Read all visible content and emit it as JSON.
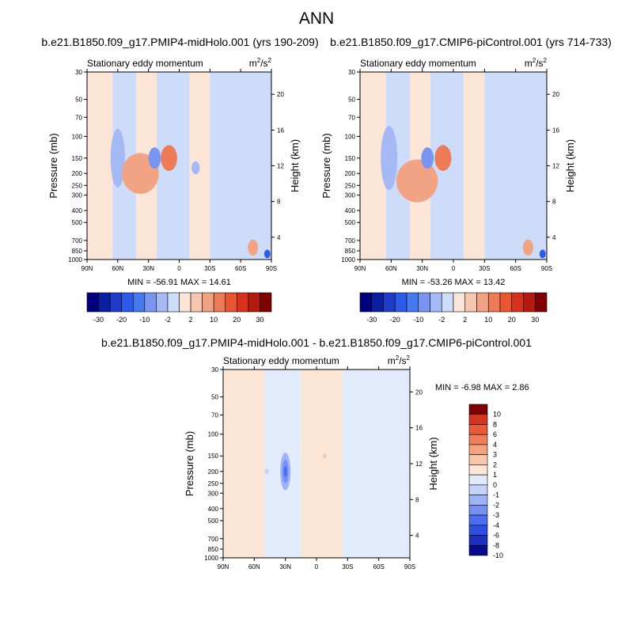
{
  "figure": {
    "title": "ANN"
  },
  "colors": {
    "ramp_full": [
      "#00007f",
      "#0a1ea0",
      "#1e3cc8",
      "#2d5ae6",
      "#4678f0",
      "#7896f0",
      "#a5b9f5",
      "#cddcf8",
      "#fbe5d6",
      "#f7c7b0",
      "#f2a383",
      "#ee7b57",
      "#e85530",
      "#d7301c",
      "#b21b0d",
      "#7e0000"
    ],
    "ramp_diff": [
      "#0a0a8c",
      "#1e2fc0",
      "#2d4fe0",
      "#4a6ef0",
      "#7690f2",
      "#9fb4f5",
      "#c4d4f8",
      "#e2ebfb",
      "#fce6d6",
      "#f8c6aa",
      "#f3a37f",
      "#ef7f5b",
      "#e85a38",
      "#d3361e",
      "#7e0000"
    ]
  },
  "chart_data": [
    {
      "type": "contour",
      "panel_title": "b.e21.B1850.f09_g17.PMIP4-midHolo.001 (yrs 190-209)",
      "left_label": "Stationary eddy momentum",
      "units": "m²/s²",
      "xlabel": "",
      "ylabel": "Pressure (mb)",
      "y2label": "Height (km)",
      "x_ticks": [
        "90N",
        "60N",
        "30N",
        "0",
        "30S",
        "60S",
        "90S"
      ],
      "y_ticks": [
        30,
        50,
        70,
        100,
        150,
        200,
        250,
        300,
        400,
        500,
        700,
        850,
        1000
      ],
      "y2_ticks": [
        20,
        16,
        12,
        8,
        4
      ],
      "ylim": [
        30,
        1000
      ],
      "stats_text": "MIN = -56.91  MAX =  14.61",
      "min": -56.91,
      "max": 14.61,
      "colorbar_labels": [
        "-30",
        "-20",
        "-10",
        "-2",
        "2",
        "10",
        "20",
        "30"
      ],
      "blobs": [
        {
          "lat": 60,
          "p": 150,
          "rlat": 7,
          "rlogp": 0.55,
          "v": -3
        },
        {
          "lat": 38,
          "p": 200,
          "rlat": 18,
          "rlogp": 0.38,
          "v": 5
        },
        {
          "lat": 10,
          "p": 150,
          "rlat": 8,
          "rlogp": 0.24,
          "v": 10
        },
        {
          "lat": 24,
          "p": 150,
          "rlat": 6,
          "rlogp": 0.2,
          "v": -10
        },
        {
          "lat": -16,
          "p": 180,
          "rlat": 4,
          "rlogp": 0.12,
          "v": -3
        },
        {
          "lat": -72,
          "p": 800,
          "rlat": 5,
          "rlogp": 0.15,
          "v": 8
        },
        {
          "lat": -86,
          "p": 900,
          "rlat": 3,
          "rlogp": 0.08,
          "v": -20
        }
      ]
    },
    {
      "type": "contour",
      "panel_title": "b.e21.B1850.f09_g17.CMIP6-piControl.001 (yrs 714-733)",
      "left_label": "Stationary eddy momentum",
      "units": "m²/s²",
      "xlabel": "",
      "ylabel": "Pressure (mb)",
      "y2label": "Height (km)",
      "x_ticks": [
        "90N",
        "60N",
        "30N",
        "0",
        "30S",
        "60S",
        "90S"
      ],
      "y_ticks": [
        30,
        50,
        70,
        100,
        150,
        200,
        250,
        300,
        400,
        500,
        700,
        850,
        1000
      ],
      "y2_ticks": [
        20,
        16,
        12,
        8,
        4
      ],
      "ylim": [
        30,
        1000
      ],
      "stats_text": "MIN = -53.26  MAX =  13.42",
      "min": -53.26,
      "max": 13.42,
      "colorbar_labels": [
        "-30",
        "-20",
        "-10",
        "-2",
        "2",
        "10",
        "20",
        "30"
      ],
      "blobs": [
        {
          "lat": 62,
          "p": 150,
          "rlat": 8,
          "rlogp": 0.6,
          "v": -3
        },
        {
          "lat": 35,
          "p": 230,
          "rlat": 20,
          "rlogp": 0.4,
          "v": 6
        },
        {
          "lat": 10,
          "p": 150,
          "rlat": 8,
          "rlogp": 0.24,
          "v": 10
        },
        {
          "lat": 25,
          "p": 150,
          "rlat": 6,
          "rlogp": 0.2,
          "v": -10
        },
        {
          "lat": -72,
          "p": 800,
          "rlat": 5,
          "rlogp": 0.15,
          "v": 8
        },
        {
          "lat": -86,
          "p": 900,
          "rlat": 3,
          "rlogp": 0.08,
          "v": -20
        }
      ]
    },
    {
      "type": "contour",
      "panel_title": "b.e21.B1850.f09_g17.PMIP4-midHolo.001 - b.e21.B1850.f09_g17.CMIP6-piControl.001",
      "left_label": "Stationary eddy momentum",
      "units": "m²/s²",
      "xlabel": "",
      "ylabel": "Pressure (mb)",
      "y2label": "Height (km)",
      "x_ticks": [
        "90N",
        "60N",
        "30N",
        "0",
        "30S",
        "60S",
        "90S"
      ],
      "y_ticks": [
        30,
        50,
        70,
        100,
        150,
        200,
        250,
        300,
        400,
        500,
        700,
        850,
        1000
      ],
      "y2_ticks": [
        20,
        16,
        12,
        8,
        4
      ],
      "ylim": [
        30,
        1000
      ],
      "stats_text": "MIN = -6.98  MAX =  2.86",
      "min": -6.98,
      "max": 2.86,
      "colorbar_labels": [
        "10",
        "8",
        "6",
        "4",
        "3",
        "2",
        "1",
        "0",
        "-1",
        "-2",
        "-3",
        "-4",
        "-6",
        "-8",
        "-10"
      ],
      "blobs": [
        {
          "lat": 30,
          "p": 200,
          "rlat": 5,
          "rlogp": 0.35,
          "v": -2.5
        },
        {
          "lat": 30,
          "p": 200,
          "rlat": 3,
          "rlogp": 0.22,
          "v": -4
        },
        {
          "lat": 30,
          "p": 200,
          "rlat": 1.5,
          "rlogp": 0.1,
          "v": -6
        },
        {
          "lat": 48,
          "p": 200,
          "rlat": 2,
          "rlogp": 0.05,
          "v": -2
        },
        {
          "lat": -8,
          "p": 150,
          "rlat": 2,
          "rlogp": 0.04,
          "v": 1.5
        }
      ]
    }
  ]
}
